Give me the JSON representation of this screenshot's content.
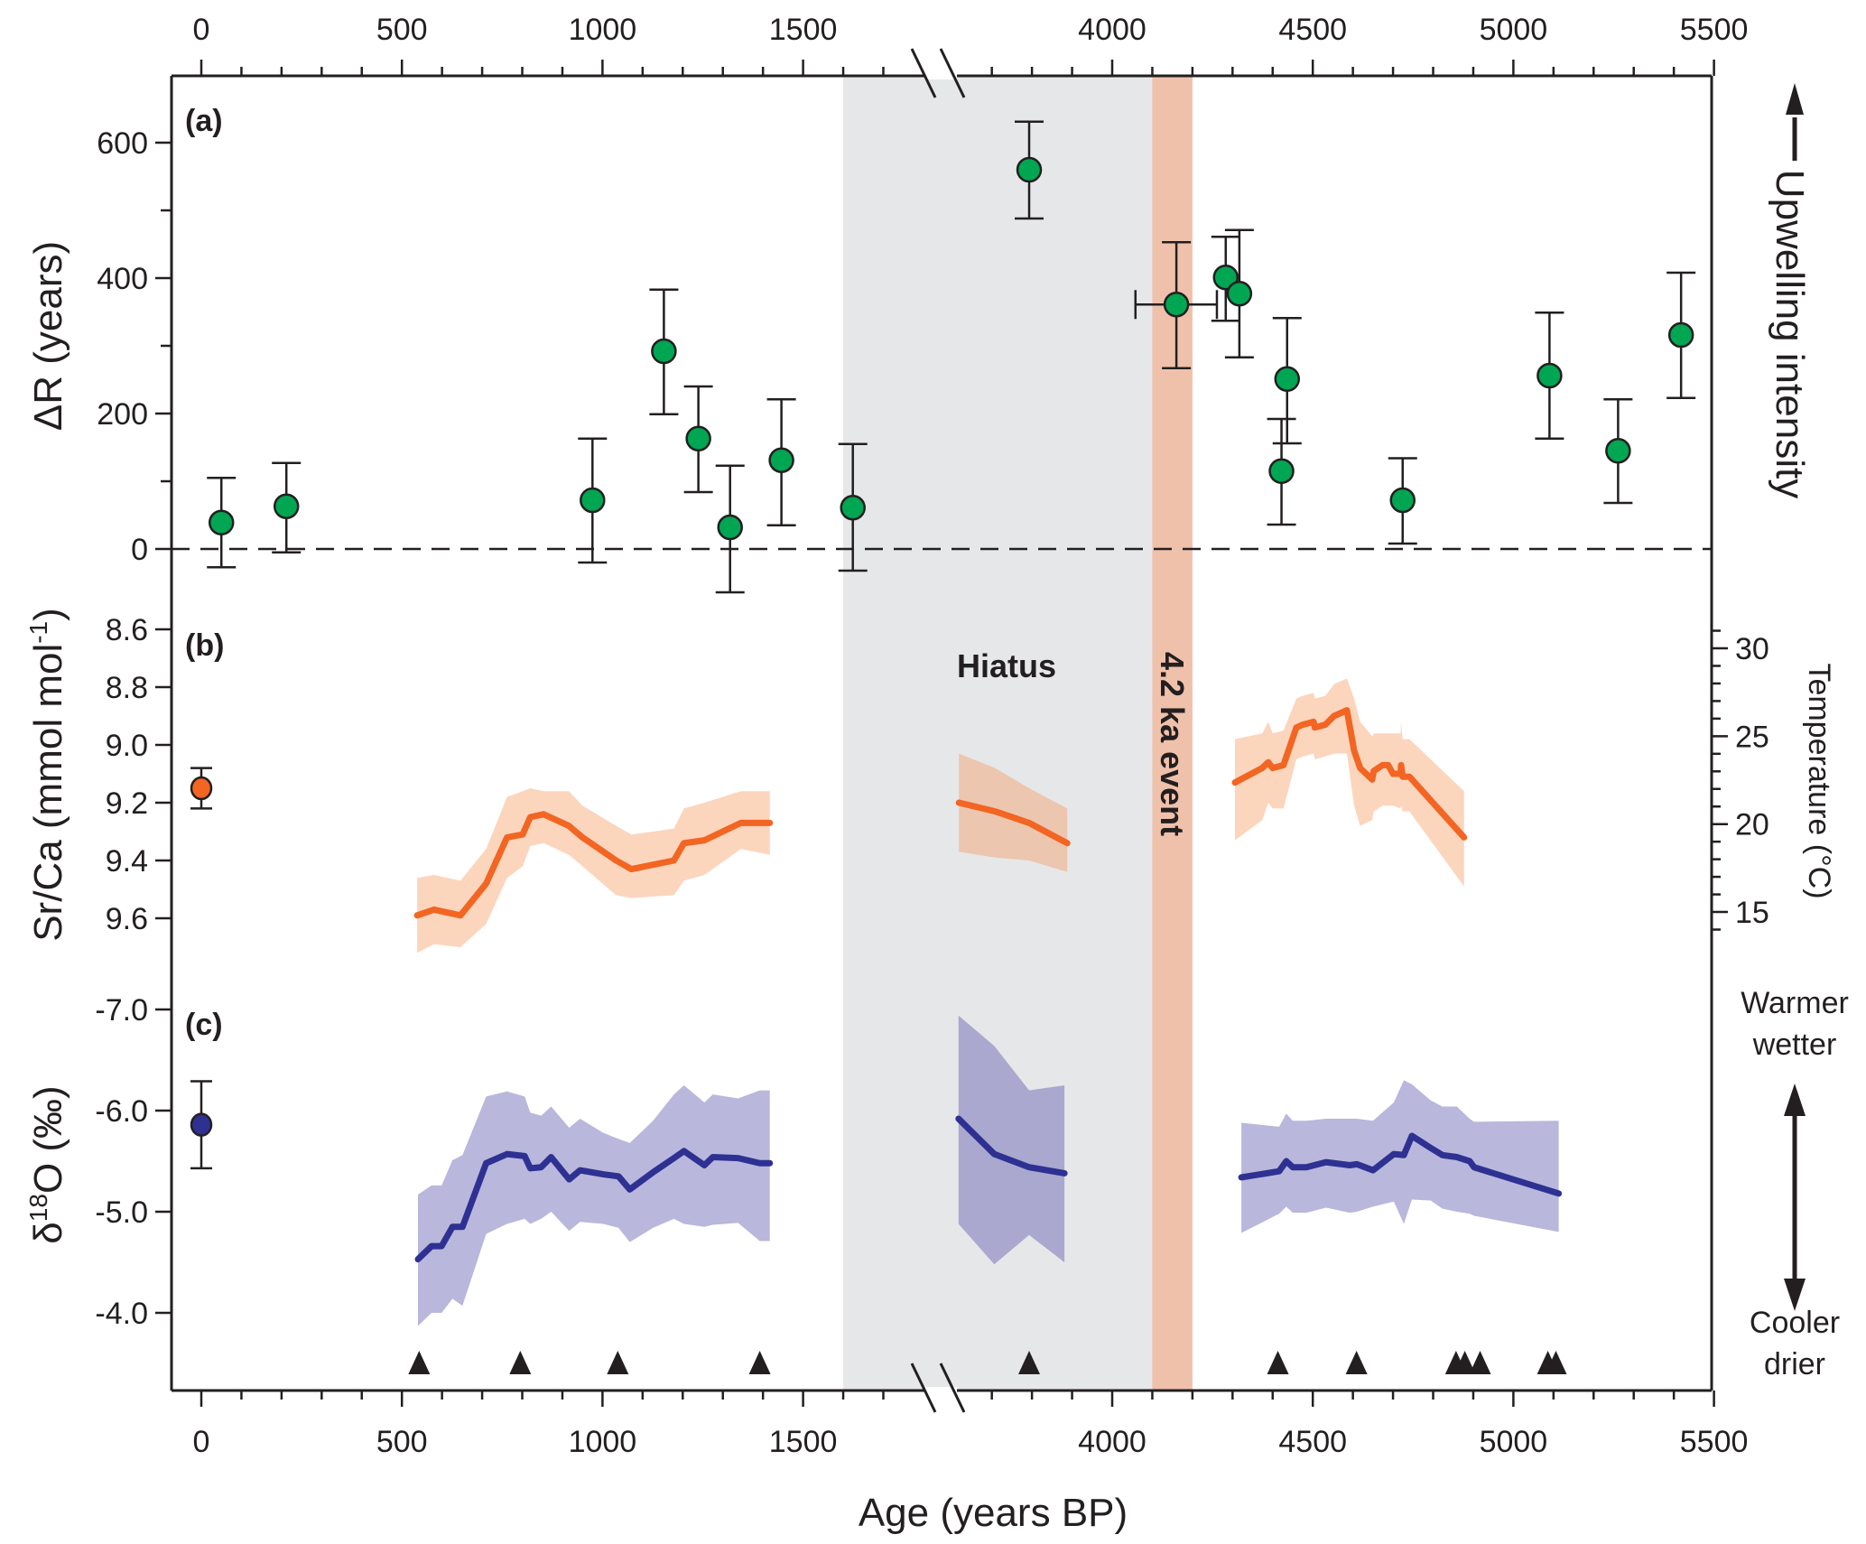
{
  "chart_data": {
    "type": "scatter",
    "figure_layout": "three vertically stacked panels sharing a broken age axis",
    "x_axis": {
      "label": "Age (years BP)",
      "range_segments": [
        [
          -70,
          1700
        ],
        [
          3650,
          5500
        ]
      ],
      "axis_break_between": [
        1700,
        3650
      ],
      "tick_labels": [
        "0",
        "500",
        "1000",
        "1500",
        "4000",
        "4500",
        "5000",
        "5500"
      ],
      "tick_values": [
        0,
        500,
        1000,
        1500,
        4000,
        4500,
        5000,
        5500
      ],
      "minor_tick_step": 100,
      "shown_on": [
        "top",
        "bottom"
      ]
    },
    "shaded_regions": [
      {
        "name": "Hiatus",
        "label": "Hiatus",
        "x_range": [
          1600,
          4100
        ],
        "color": "#e6e7e9"
      },
      {
        "name": "4.2 ka event",
        "label": "4.2 ka event",
        "x_range": [
          4100,
          4200
        ],
        "color": "#efc1ab"
      }
    ],
    "panels": [
      {
        "id": "a",
        "panel_label": "(a)",
        "ylabel": "ΔR (years)",
        "ylim": [
          -130,
          690
        ],
        "y_tick_labels": [
          "0",
          "200",
          "400",
          "600"
        ],
        "y_tick_values": [
          0,
          200,
          400,
          600
        ],
        "y_minor_step": 100,
        "reference_line": {
          "y": 0,
          "style": "dashed"
        },
        "right_annotation": "Upwelling intensity",
        "right_arrow": "up",
        "series": [
          {
            "name": "ΔR",
            "kind": "errorbar-scatter",
            "color": "#00a651",
            "points": [
              {
                "x": 50,
                "y": 39,
                "y_err": [
                  -27,
                  105
                ]
              },
              {
                "x": 212,
                "y": 63,
                "y_err": [
                  -5,
                  127
                ]
              },
              {
                "x": 975,
                "y": 72,
                "y_err": [
                  -20,
                  163
                ]
              },
              {
                "x": 1153,
                "y": 292,
                "y_err": [
                  199,
                  383
                ]
              },
              {
                "x": 1239,
                "y": 163,
                "y_err": [
                  84,
                  240
                ]
              },
              {
                "x": 1318,
                "y": 32,
                "y_err": [
                  -64,
                  123
                ]
              },
              {
                "x": 1446,
                "y": 131,
                "y_err": [
                  35,
                  221
                ]
              },
              {
                "x": 1624,
                "y": 61,
                "y_err": [
                  -32,
                  155
                ]
              },
              {
                "x": 3793,
                "y": 560,
                "y_err": [
                  488,
                  631
                ]
              },
              {
                "x": 4160,
                "y": 361,
                "y_err": [
                  267,
                  453
                ],
                "x_err": [
                  4058,
                  4261
                ]
              },
              {
                "x": 4283,
                "y": 401,
                "y_err": [
                  337,
                  461
                ]
              },
              {
                "x": 4317,
                "y": 377,
                "y_err": [
                  283,
                  471
                ]
              },
              {
                "x": 4422,
                "y": 115,
                "y_err": [
                  36,
                  192
                ]
              },
              {
                "x": 4436,
                "y": 251,
                "y_err": [
                  156,
                  341
                ]
              },
              {
                "x": 4724,
                "y": 72,
                "y_err": [
                  8,
                  134
                ]
              },
              {
                "x": 5090,
                "y": 256,
                "y_err": [
                  163,
                  349
                ]
              },
              {
                "x": 5261,
                "y": 145,
                "y_err": [
                  68,
                  221
                ]
              },
              {
                "x": 5418,
                "y": 316,
                "y_err": [
                  223,
                  408
                ]
              }
            ]
          }
        ]
      },
      {
        "id": "b",
        "panel_label": "(b)",
        "ylabel": "Sr/Ca (mmol mol⁻¹)",
        "ylabel_main": "Sr/Ca (mmol mol",
        "ylabel_sup": "-1",
        "ylabel_close": ")",
        "y_inverted": true,
        "ylim": [
          8.47,
          9.72
        ],
        "y_tick_labels": [
          "8.6",
          "8.8",
          "9.0",
          "9.2",
          "9.4",
          "9.6"
        ],
        "y_tick_values": [
          8.6,
          8.8,
          9.0,
          9.2,
          9.4,
          9.6
        ],
        "right_axis": {
          "label": "Temperature (°C)",
          "tick_labels": [
            "15",
            "20",
            "25",
            "30"
          ],
          "tick_values": [
            15,
            20,
            25,
            30
          ],
          "minor_step": 1,
          "range": [
            14,
            31
          ]
        },
        "series": [
          {
            "name": "Modern Sr/Ca",
            "kind": "errorbar-scatter",
            "color": "#f26522",
            "points": [
              {
                "x": 0,
                "y": 9.15,
                "y_err": [
                  9.08,
                  9.22
                ]
              }
            ]
          },
          {
            "name": "Sr/Ca segment 1",
            "kind": "line-band",
            "color": "#f26522",
            "band_color": "#fcd5bd",
            "x": [
              538,
              580,
              646,
              710,
              762,
              801,
              820,
              853,
              916,
              950,
              1034,
              1072,
              1178,
              1203,
              1254,
              1345,
              1417
            ],
            "y": [
              9.59,
              9.57,
              9.59,
              9.48,
              9.32,
              9.31,
              9.25,
              9.24,
              9.28,
              9.32,
              9.4,
              9.43,
              9.4,
              9.34,
              9.33,
              9.27,
              9.27
            ],
            "lower": [
              9.46,
              9.45,
              9.47,
              9.36,
              9.18,
              9.16,
              9.15,
              9.16,
              9.16,
              9.21,
              9.28,
              9.31,
              9.29,
              9.22,
              9.2,
              9.16,
              9.16
            ],
            "upper": [
              9.72,
              9.69,
              9.7,
              9.62,
              9.46,
              9.42,
              9.35,
              9.34,
              9.38,
              9.42,
              9.52,
              9.53,
              9.52,
              9.47,
              9.45,
              9.36,
              9.38
            ]
          },
          {
            "name": "Sr/Ca segment 2",
            "kind": "line-band",
            "color": "#f26522",
            "band_color": "#ecc6ae",
            "x": [
              3618,
              3708,
              3793,
              3888
            ],
            "y": [
              9.2,
              9.23,
              9.27,
              9.34
            ],
            "lower": [
              9.03,
              9.08,
              9.15,
              9.22
            ],
            "upper": [
              9.37,
              9.39,
              9.4,
              9.44
            ]
          },
          {
            "name": "Sr/Ca segment 3",
            "kind": "line-band",
            "color": "#f26522",
            "band_color": "#fcd5bd",
            "x": [
              4306,
              4374,
              4389,
              4400,
              4427,
              4459,
              4475,
              4502,
              4505,
              4531,
              4553,
              4585,
              4603,
              4618,
              4648,
              4652,
              4674,
              4688,
              4700,
              4719,
              4720,
              4724,
              4741,
              4877
            ],
            "y": [
              9.13,
              9.08,
              9.06,
              9.08,
              9.07,
              8.94,
              8.93,
              8.92,
              8.94,
              8.93,
              8.9,
              8.88,
              9.02,
              9.08,
              9.12,
              9.09,
              9.07,
              9.07,
              9.1,
              9.1,
              9.07,
              9.11,
              9.11,
              9.32
            ],
            "lower": [
              8.98,
              8.96,
              8.92,
              8.96,
              8.95,
              8.84,
              8.83,
              8.82,
              8.84,
              8.83,
              8.79,
              8.77,
              8.84,
              8.92,
              8.97,
              8.96,
              8.96,
              8.96,
              8.96,
              8.96,
              8.92,
              8.98,
              8.98,
              9.16
            ],
            "upper": [
              9.33,
              9.26,
              9.2,
              9.22,
              9.22,
              9.05,
              9.04,
              9.03,
              9.05,
              9.04,
              9.03,
              9.03,
              9.21,
              9.28,
              9.26,
              9.23,
              9.21,
              9.21,
              9.21,
              9.22,
              9.21,
              9.23,
              9.23,
              9.49
            ]
          }
        ]
      },
      {
        "id": "c",
        "panel_label": "(c)",
        "ylabel": "δ18O (‰)",
        "ylabel_delta": "δ",
        "ylabel_sup": "18",
        "ylabel_rest": "O (‰)",
        "y_inverted": true,
        "ylim": [
          -7.2,
          -3.6
        ],
        "y_tick_labels": [
          "-7.0",
          "-6.0",
          "-5.0",
          "-4.0"
        ],
        "y_tick_values": [
          -7.0,
          -6.0,
          -5.0,
          -4.0
        ],
        "right_annotation_top": [
          "Warmer",
          "wetter"
        ],
        "right_annotation_bottom": [
          "Cooler",
          "drier"
        ],
        "right_arrow": "double",
        "series": [
          {
            "name": "Modern δ18O",
            "kind": "errorbar-scatter",
            "color": "#2e3192",
            "points": [
              {
                "x": 0,
                "y": -5.86,
                "y_err": [
                  -6.29,
                  -5.43
                ]
              }
            ]
          },
          {
            "name": "δ18O segment 1",
            "kind": "line-band",
            "color": "#2e3192",
            "band_color": "#b9b7dc",
            "x": [
              540,
              574,
              599,
              626,
              651,
              710,
              762,
              806,
              820,
              847,
              872,
              917,
              944,
              1002,
              1040,
              1068,
              1126,
              1178,
              1203,
              1254,
              1275,
              1338,
              1392,
              1417
            ],
            "y": [
              -4.53,
              -4.66,
              -4.66,
              -4.85,
              -4.85,
              -5.48,
              -5.57,
              -5.55,
              -5.43,
              -5.44,
              -5.54,
              -5.32,
              -5.41,
              -5.37,
              -5.35,
              -5.22,
              -5.39,
              -5.53,
              -5.6,
              -5.46,
              -5.54,
              -5.53,
              -5.48,
              -5.48
            ],
            "lower": [
              -3.87,
              -4.0,
              -4.0,
              -4.14,
              -4.07,
              -4.78,
              -4.88,
              -4.93,
              -4.88,
              -4.93,
              -5.0,
              -4.81,
              -4.9,
              -4.88,
              -4.84,
              -4.7,
              -4.84,
              -4.93,
              -4.88,
              -4.85,
              -4.87,
              -4.89,
              -4.71,
              -4.71
            ],
            "upper": [
              -5.17,
              -5.26,
              -5.26,
              -5.51,
              -5.56,
              -6.14,
              -6.19,
              -6.14,
              -5.98,
              -5.95,
              -6.04,
              -5.83,
              -5.92,
              -5.78,
              -5.72,
              -5.68,
              -5.9,
              -6.16,
              -6.25,
              -6.08,
              -6.16,
              -6.12,
              -6.2,
              -6.2
            ]
          },
          {
            "name": "δ18O segment 2",
            "kind": "line-band",
            "color": "#2e3192",
            "band_color": "#aaa8cf",
            "x": [
              3617,
              3706,
              3793,
              3881
            ],
            "y": [
              -5.92,
              -5.57,
              -5.44,
              -5.38
            ],
            "lower": [
              -4.88,
              -4.48,
              -4.77,
              -4.5
            ],
            "upper": [
              -6.94,
              -6.64,
              -6.2,
              -6.25
            ]
          },
          {
            "name": "δ18O segment 3",
            "kind": "line-band",
            "color": "#2e3192",
            "band_color": "#b9b7dc",
            "x": [
              4322,
              4416,
              4434,
              4450,
              4484,
              4533,
              4592,
              4610,
              4650,
              4702,
              4727,
              4747,
              4794,
              4823,
              4859,
              4891,
              4902,
              5113
            ],
            "y": [
              -5.34,
              -5.4,
              -5.5,
              -5.44,
              -5.44,
              -5.49,
              -5.46,
              -5.47,
              -5.41,
              -5.57,
              -5.56,
              -5.75,
              -5.63,
              -5.56,
              -5.54,
              -5.5,
              -5.44,
              -5.18
            ],
            "lower": [
              -4.79,
              -4.98,
              -5.05,
              -4.99,
              -4.99,
              -5.04,
              -4.99,
              -5.0,
              -5.05,
              -5.1,
              -4.88,
              -5.12,
              -5.11,
              -5.03,
              -5.0,
              -4.98,
              -4.96,
              -4.8
            ],
            "upper": [
              -5.88,
              -5.84,
              -5.97,
              -5.9,
              -5.9,
              -5.92,
              -5.92,
              -5.92,
              -5.9,
              -6.08,
              -6.3,
              -6.26,
              -6.1,
              -6.04,
              -6.04,
              -5.92,
              -5.89,
              -5.9
            ]
          }
        ]
      }
    ],
    "sample_markers": {
      "name": "Dated sample positions",
      "shape": "triangle",
      "color": "#231f20",
      "x": [
        543,
        795,
        1038,
        1392,
        3793,
        4413,
        4609,
        4857,
        4879,
        4917,
        5086,
        5106
      ]
    },
    "annotations": {
      "hiatus": "Hiatus",
      "event": "4.2 ka event",
      "upwelling": "Upwelling intensity",
      "warmer": [
        "Warmer",
        "wetter"
      ],
      "cooler": [
        "Cooler",
        "drier"
      ]
    },
    "grid": false,
    "legend": "none"
  }
}
